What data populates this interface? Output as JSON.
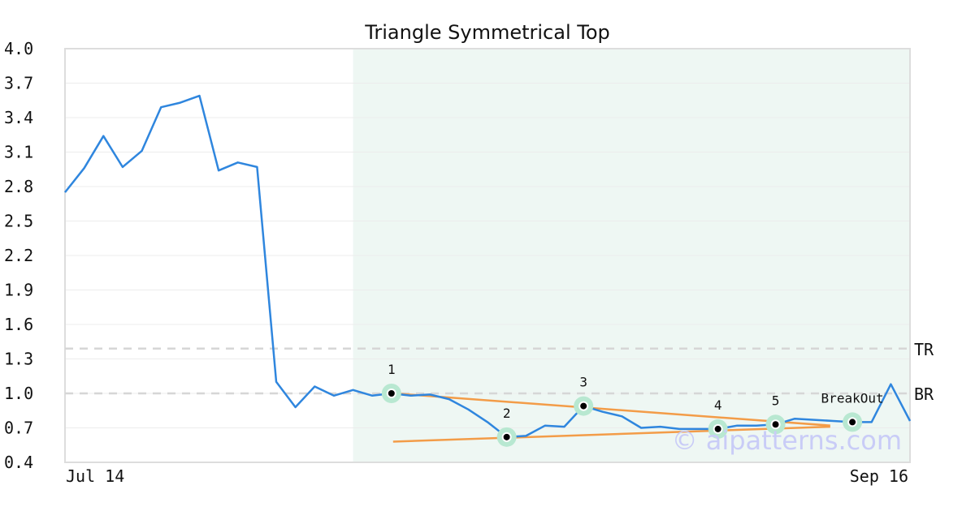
{
  "chart_data": {
    "type": "line",
    "title": "Triangle Symmetrical Top",
    "xlabel": "",
    "ylabel": "",
    "ylim": [
      0.4,
      4.0
    ],
    "y_ticks": [
      "4.0",
      "3.7",
      "3.4",
      "3.1",
      "2.8",
      "2.5",
      "2.2",
      "1.9",
      "1.6",
      "1.3",
      "1.0",
      "0.7",
      "0.4"
    ],
    "x_ticks": [
      "Jul 14",
      "Sep 16"
    ],
    "grid": true,
    "series": [
      {
        "name": "",
        "color": "#2f86de",
        "values": [
          2.75,
          2.96,
          3.24,
          2.97,
          3.11,
          3.49,
          3.53,
          3.59,
          2.94,
          3.01,
          2.97,
          1.1,
          0.88,
          1.06,
          0.98,
          1.03,
          0.98,
          1.0,
          0.98,
          0.99,
          0.95,
          0.86,
          0.75,
          0.62,
          0.63,
          0.72,
          0.71,
          0.89,
          0.84,
          0.8,
          0.7,
          0.71,
          0.69,
          0.69,
          0.69,
          0.72,
          0.72,
          0.73,
          0.78,
          0.77,
          0.76,
          0.75,
          0.75,
          1.08,
          0.76
        ]
      }
    ],
    "highlight_region": {
      "from_index": 15,
      "to_index": 44,
      "color": "#eef7f3"
    },
    "reference_lines": [
      {
        "label": "TR",
        "value": 1.39
      },
      {
        "label": "BR",
        "value": 1.0
      }
    ],
    "trend_lines": [
      {
        "from": [
          17,
          1.0
        ],
        "to": [
          39,
          0.72
        ],
        "color": "#f39c48"
      },
      {
        "from": [
          17,
          0.58
        ],
        "to": [
          39,
          0.71
        ],
        "color": "#f39c48"
      }
    ],
    "points": [
      {
        "label": "1",
        "index": 17,
        "value": 1.0
      },
      {
        "label": "2",
        "index": 23,
        "value": 0.62
      },
      {
        "label": "3",
        "index": 27,
        "value": 0.89
      },
      {
        "label": "4",
        "index": 34,
        "value": 0.69
      },
      {
        "label": "5",
        "index": 37,
        "value": 0.73
      },
      {
        "label": "BreakOut",
        "index": 41,
        "value": 0.75
      }
    ],
    "watermark": "© aipatterns.com"
  }
}
